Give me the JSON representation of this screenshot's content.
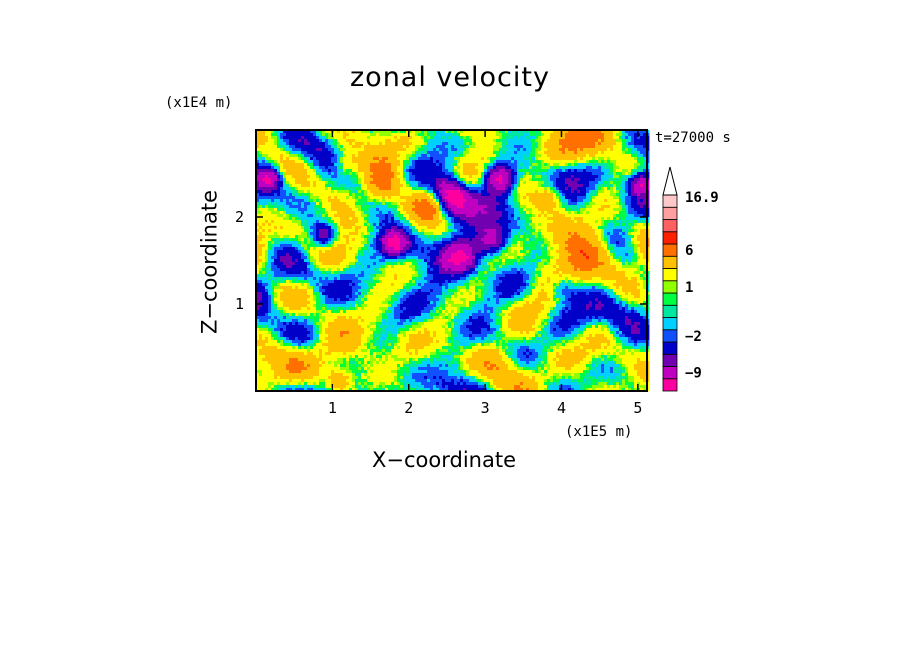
{
  "chart_data": {
    "type": "heatmap",
    "title": "zonal velocity",
    "xlabel": "X−coordinate",
    "ylabel": "Z−coordinate",
    "x_scale_label": "(x1E5 m)",
    "y_scale_label": "(x1E4 m)",
    "time_label": "t=27000 s",
    "xlim": [
      0,
      5.12
    ],
    "ylim": [
      0,
      3.0
    ],
    "x_ticks": [
      "1",
      "2",
      "3",
      "4",
      "5"
    ],
    "y_ticks": [
      "1",
      "2"
    ],
    "colorbar": {
      "levels": [
        -12,
        -9,
        -6,
        -4,
        -2,
        -1,
        0,
        0.5,
        1,
        1.5,
        3,
        6,
        9,
        12,
        14,
        16.9
      ],
      "tick_labels": [
        "16.9",
        "6",
        "1",
        "−2",
        "−9"
      ],
      "colors": [
        "#ff00a0",
        "#c000c0",
        "#7000b0",
        "#0000c8",
        "#1050ff",
        "#00d0ff",
        "#00e8a0",
        "#00ff40",
        "#90ff00",
        "#ffff00",
        "#ffc000",
        "#ff7000",
        "#ff2000",
        "#ff6060",
        "#ffa0a0",
        "#ffc8c8"
      ],
      "extend": "max"
    },
    "field_description": "noisy zonal velocity field, mostly small positive values with negative bands"
  }
}
